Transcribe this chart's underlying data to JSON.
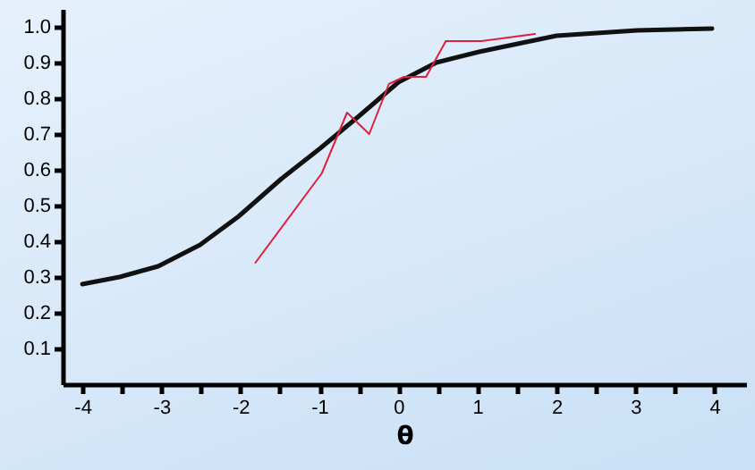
{
  "chart_data": {
    "type": "line",
    "xlabel": "θ",
    "xlim": [
      -4.25,
      4.4
    ],
    "xticks": [
      -4,
      {
        "value": -3.5,
        "label": null
      },
      -3,
      {
        "value": -2.5,
        "label": null
      },
      -2,
      {
        "value": -1.5,
        "label": null
      },
      -1,
      {
        "value": -0.5,
        "label": null
      },
      0,
      {
        "value": 0.5,
        "label": null
      },
      1,
      {
        "value": 1.5,
        "label": null
      },
      2,
      {
        "value": 2.5,
        "label": null
      },
      3,
      {
        "value": 3.5,
        "label": null
      },
      4
    ],
    "ylim": [
      0,
      1.05
    ],
    "yticks": [
      0.1,
      0.2,
      0.3,
      0.4,
      0.5,
      0.6,
      0.7,
      0.8,
      0.9,
      {
        "value": 1,
        "label": "1.0"
      }
    ],
    "grid": false,
    "marker": "none",
    "line_style": "solid",
    "series": [
      {
        "color": "#111111",
        "x": [
          -4,
          -3.53,
          -3.04,
          -2.51,
          -2.02,
          -1.48,
          -0.99,
          -0.5,
          0,
          0.48,
          1.02,
          2,
          3.02,
          3.97
        ],
        "values": [
          0.28,
          0.3,
          0.33,
          0.39,
          0.47,
          0.575,
          0.66,
          0.75,
          0.845,
          0.9,
          0.93,
          0.975,
          0.99,
          0.995
        ]
      },
      {
        "color": "#e0203a",
        "x": [
          -1.81,
          -0.97,
          -0.65,
          -0.37,
          -0.12,
          0.07,
          0.35,
          0.6,
          1.05,
          1.73
        ],
        "values": [
          0.34,
          0.59,
          0.76,
          0.7,
          0.84,
          0.86,
          0.86,
          0.96,
          0.96,
          0.98
        ]
      }
    ]
  }
}
